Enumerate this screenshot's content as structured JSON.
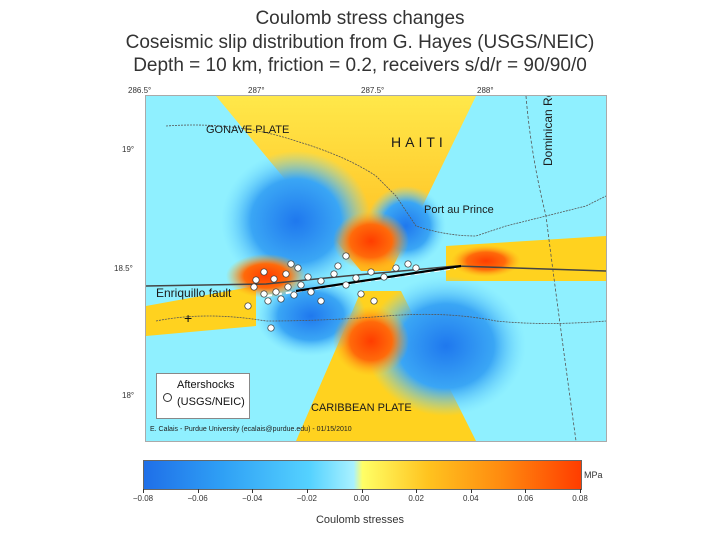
{
  "title": {
    "line1": "Coulomb stress changes",
    "line2": "Coseismic slip distribution from G. Hayes (USGS/NEIC)",
    "line3": "Depth = 10 km, friction = 0.2, receivers s/d/r = 90/90/0"
  },
  "axes": {
    "lon_ticks": [
      "286.5°",
      "287°",
      "287.5°",
      "288°"
    ],
    "lat_ticks": [
      "19°",
      "18.5°",
      "18°"
    ]
  },
  "map_labels": {
    "gonave": "GONAVE PLATE",
    "haiti": "HAITI",
    "dominican": "Dominican Republic",
    "port_au_prince": "Port au Prince",
    "enriquillo": "Enriquillo fault",
    "caribbean": "CARIBBEAN PLATE",
    "credit": "E. Calais - Purdue University (ecalais@purdue.edu) - 01/15/2010",
    "plus_marker": "+"
  },
  "legend": {
    "line1": "Aftershocks",
    "line2": "(USGS/NEIC)"
  },
  "colorbar": {
    "unit": "MPa",
    "title": "Coulomb stresses",
    "ticks": [
      "−0.08",
      "−0.06",
      "−0.04",
      "−0.02",
      "0.00",
      "0.02",
      "0.04",
      "0.06",
      "0.08"
    ]
  },
  "colors": {
    "positive_stress": "#ff5a0a",
    "negative_stress": "#2f9bf0",
    "neutral": "#8ff0ff",
    "lobe_yellow": "#ffd21f"
  }
}
